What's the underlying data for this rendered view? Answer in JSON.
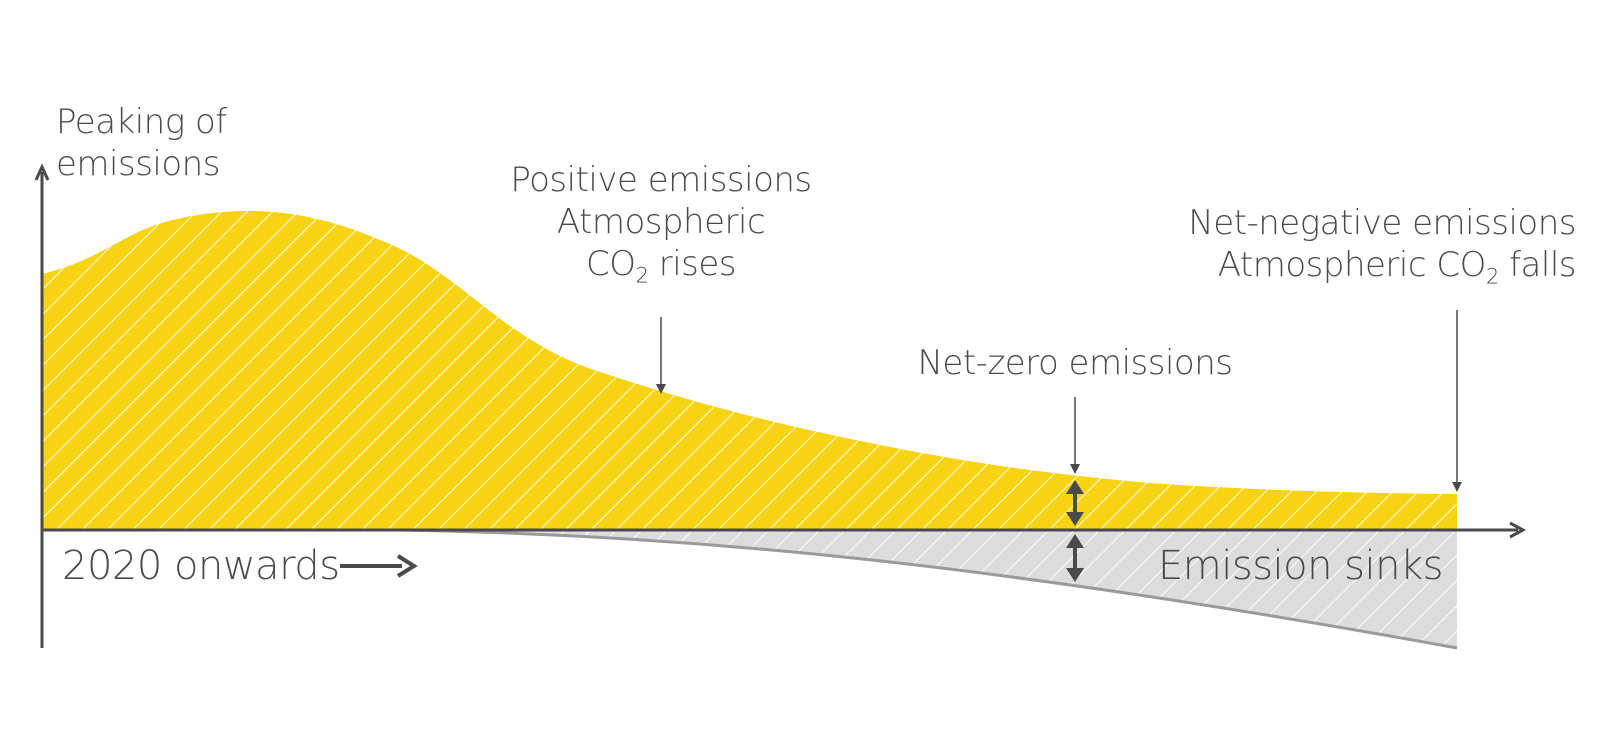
{
  "colors": {
    "positive_fill": "#f6d313",
    "sink_fill": "#dcdcdc",
    "hatch": "#ffffff",
    "axis": "#4a4a4a",
    "sink_line": "#9a9a9a",
    "text": "#4a4a4a"
  },
  "labels": {
    "peaking_line1": "Peaking of",
    "peaking_line2": "emissions",
    "positive_line1": "Positive emissions",
    "positive_line2_text": "Atmospheric",
    "positive_line3_pre": "CO",
    "positive_line3_sub": "2",
    "positive_line3_post": " rises",
    "netzero": "Net-zero emissions",
    "netneg_line1": "Net-negative emissions",
    "netneg_line2_pre": "Atmospheric CO",
    "netneg_line2_sub": "2",
    "netneg_line2_post": " falls",
    "time_label": "2020 onwards",
    "sinks": "Emission sinks"
  },
  "icons": {
    "time_arrow": "right-arrow-icon",
    "netzero_marker": "double-headed-arrow-icon"
  }
}
